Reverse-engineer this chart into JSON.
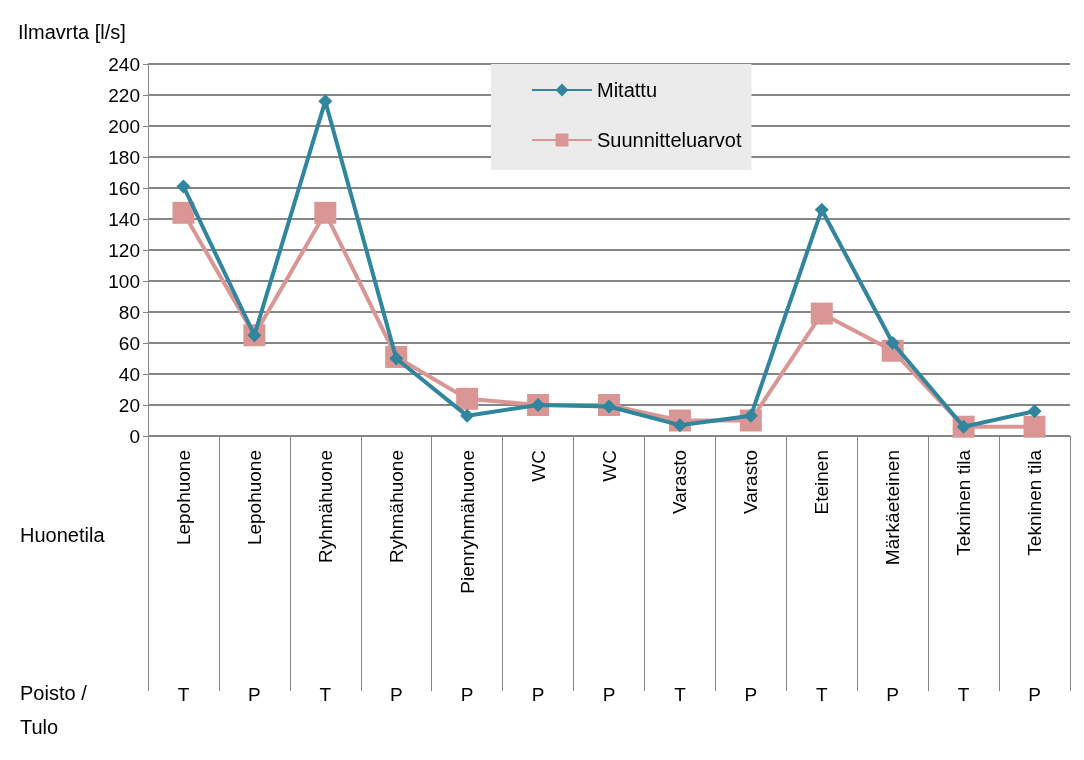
{
  "chart_data": {
    "type": "line",
    "ylabel": "Ilmavrta [l/s]",
    "categories": [
      "Lepohuone",
      "Lepohuone",
      "Ryhmähuone",
      "Ryhmähuone",
      "Pienryhmähuone",
      "WC",
      "WC",
      "Varasto",
      "Varasto",
      "Eteinen",
      "Märkäeteinen",
      "Tekninen tila",
      "Tekninen tila"
    ],
    "series": [
      {
        "name": "Mitattu",
        "color": "#31859c",
        "marker": "diamond",
        "values": [
          161,
          65,
          216,
          50,
          13,
          20,
          19,
          7,
          13,
          146,
          60,
          6,
          16
        ]
      },
      {
        "name": "Suunnitteluarvot",
        "color": "#d99694",
        "marker": "square",
        "values": [
          144,
          65,
          144,
          51,
          24,
          20,
          20,
          10,
          10,
          79,
          55,
          6,
          6
        ]
      }
    ],
    "ylim": [
      0,
      240
    ],
    "yticks": [
      0,
      20,
      40,
      60,
      80,
      100,
      120,
      140,
      160,
      180,
      200,
      220,
      240
    ],
    "grid": "y",
    "legend": "top center",
    "annotations": [
      "Huonetila",
      "Poisto /\nTulo",
      "T",
      "P",
      "T",
      "P",
      "P",
      "P",
      "P",
      "T",
      "P",
      "T",
      "P",
      "T",
      "P"
    ]
  }
}
